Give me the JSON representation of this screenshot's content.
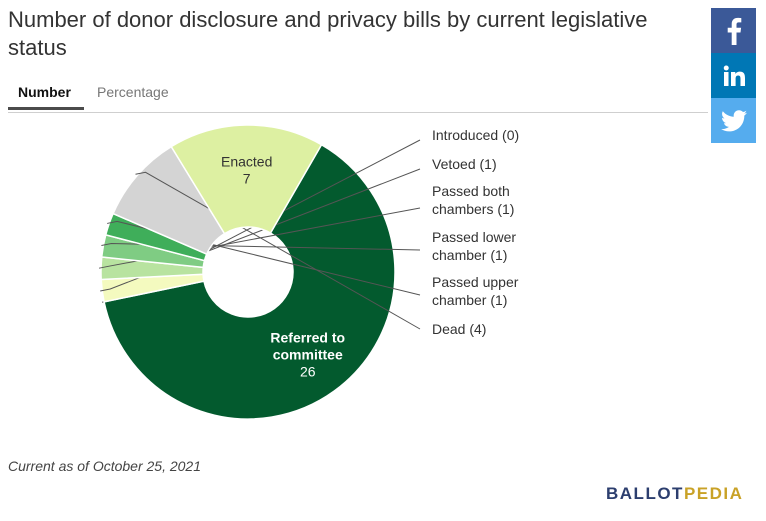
{
  "title": "Number of donor disclosure and privacy bills by current legislative status",
  "tabs": [
    {
      "label": "Number",
      "active": true
    },
    {
      "label": "Percentage",
      "active": false
    }
  ],
  "share": {
    "facebook_icon": "facebook-icon",
    "linkedin_icon": "linkedin-icon",
    "twitter_icon": "twitter-icon"
  },
  "footnote": "Current as of October 25, 2021",
  "brand": {
    "part1": "BALLOT",
    "part2": "PEDIA",
    "color1": "#2c3e6e",
    "color2": "#c9a227"
  },
  "chart_data": {
    "type": "pie",
    "donut": true,
    "slices": [
      {
        "label": "Referred to committee",
        "value": 26,
        "color": "#035a2e",
        "label_position": "inside",
        "display": [
          "Referred to",
          "committee",
          "26"
        ]
      },
      {
        "label": "Introduced",
        "value": 0,
        "color": "#f2f9c4",
        "label_position": "outside",
        "display": [
          "Introduced (0)"
        ]
      },
      {
        "label": "Vetoed",
        "value": 1,
        "color": "#f4fabf",
        "label_position": "outside",
        "display": [
          "Vetoed (1)"
        ]
      },
      {
        "label": "Passed both chambers",
        "value": 1,
        "color": "#b8e3a0",
        "label_position": "outside",
        "display": [
          "Passed both",
          "chambers (1)"
        ]
      },
      {
        "label": "Passed lower chamber",
        "value": 1,
        "color": "#7fcc83",
        "label_position": "outside",
        "display": [
          "Passed lower",
          "chamber (1)"
        ]
      },
      {
        "label": "Passed upper chamber",
        "value": 1,
        "color": "#3fae5a",
        "label_position": "outside",
        "display": [
          "Passed upper",
          "chamber (1)"
        ]
      },
      {
        "label": "Dead",
        "value": 4,
        "color": "#d4d4d4",
        "label_position": "outside",
        "display": [
          "Dead (4)"
        ]
      },
      {
        "label": "Enacted",
        "value": 7,
        "color": "#ddf0a2",
        "label_position": "inside",
        "display": [
          "Enacted",
          "7"
        ]
      }
    ]
  }
}
